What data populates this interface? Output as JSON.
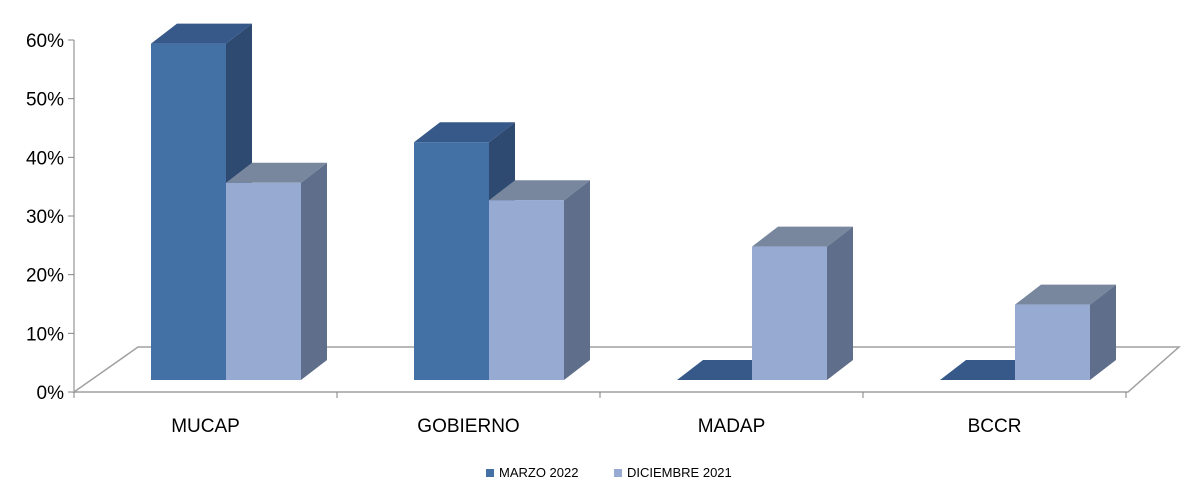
{
  "chart_data": {
    "type": "bar",
    "categories": [
      "MUCAP",
      "GOBIERNO",
      "MADAP",
      "BCCR"
    ],
    "series": [
      {
        "name": "MARZO 2022",
        "values": [
          58,
          41,
          0,
          0
        ]
      },
      {
        "name": "DICIEMBRE 2021",
        "values": [
          34,
          31,
          23,
          13
        ]
      }
    ],
    "y_ticks": [
      "0%",
      "10%",
      "20%",
      "30%",
      "40%",
      "50%",
      "60%"
    ],
    "ylim": [
      0,
      60
    ],
    "grid": false,
    "legend": "bottom-center",
    "style": "3d-clustered-column",
    "colors": {
      "series1_front": "#4370A5",
      "series1_side": "#2E4A70",
      "series1_top": "#37598A",
      "series2_front": "#96AAD2",
      "series2_side": "#5F6E8A",
      "series2_top": "#78879E",
      "floor_line": "#A0A0A0"
    }
  }
}
